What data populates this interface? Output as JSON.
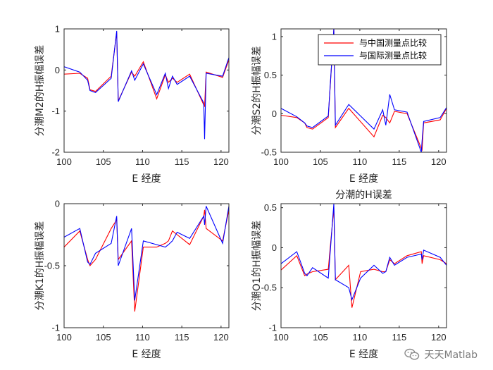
{
  "colors": {
    "china": "#ff0000",
    "intl": "#0000ff",
    "axis": "#262626"
  },
  "legend": {
    "china": "与中国测量点比较",
    "intl": "与国际测量点比较"
  },
  "watermark": {
    "text": "天天Matlab",
    "icon": "wechat-icon"
  },
  "chart_data": [
    {
      "type": "line",
      "id": "m2",
      "title": "",
      "xlabel": "E 经度",
      "ylabel": "分潮M2的H振幅误差",
      "xlim": [
        100,
        121
      ],
      "ylim": [
        -2,
        1
      ],
      "xticks": [
        100,
        105,
        110,
        115,
        120
      ],
      "yticks": [
        -2,
        -1,
        0,
        1
      ],
      "xticklabels": [
        "100",
        "105",
        "110",
        "115",
        "120"
      ],
      "yticklabels": [
        "-2",
        "-1",
        "0",
        "1"
      ],
      "series": [
        {
          "key": "china",
          "color": "#ff0000",
          "x": [
            100,
            102,
            103,
            103.3,
            104,
            106,
            106.7,
            106.9,
            108.6,
            109,
            110.1,
            111.8,
            112.9,
            113.3,
            113.8,
            114.4,
            116,
            117.8,
            117.9,
            118.1,
            120.2,
            121
          ],
          "y": [
            -0.1,
            -0.08,
            -0.2,
            -0.48,
            -0.52,
            -0.15,
            0.92,
            -0.75,
            -0.05,
            -0.15,
            0.2,
            -0.7,
            -0.12,
            -0.3,
            -0.2,
            -0.3,
            -0.1,
            -0.85,
            -0.88,
            -0.05,
            -0.18,
            0.25
          ]
        },
        {
          "key": "intl",
          "color": "#0000ff",
          "x": [
            100,
            102,
            103,
            103.3,
            104,
            106,
            106.7,
            106.9,
            108.6,
            109,
            110.1,
            111.8,
            112.9,
            113.3,
            113.8,
            114.4,
            116,
            117.8,
            117.9,
            118.1,
            120.2,
            121
          ],
          "y": [
            0.08,
            -0.05,
            -0.25,
            -0.5,
            -0.55,
            -0.2,
            0.95,
            -0.77,
            -0.02,
            -0.25,
            0.15,
            -0.6,
            -0.08,
            -0.45,
            -0.15,
            -0.35,
            -0.15,
            -0.8,
            -1.68,
            -0.08,
            -0.15,
            0.3
          ]
        }
      ]
    },
    {
      "type": "line",
      "id": "s2",
      "title": "",
      "xlabel": "E 经度",
      "ylabel": "分潮S2的H振幅误差",
      "xlim": [
        100,
        121
      ],
      "ylim": [
        -0.5,
        1.1
      ],
      "xticks": [
        100,
        105,
        110,
        115,
        120
      ],
      "yticks": [
        -0.5,
        0,
        0.5,
        1
      ],
      "xticklabels": [
        "100",
        "105",
        "110",
        "115",
        "120"
      ],
      "yticklabels": [
        "-0.5",
        "0",
        "0.5",
        "1"
      ],
      "legend": "top-right",
      "series": [
        {
          "key": "china",
          "color": "#ff0000",
          "x": [
            100,
            102,
            103,
            103.3,
            104,
            106,
            106.7,
            106.9,
            108.6,
            111.8,
            112.9,
            113.3,
            113.8,
            114.4,
            116,
            117.8,
            117.9,
            118.1,
            120.2,
            121
          ],
          "y": [
            -0.02,
            -0.05,
            -0.12,
            -0.18,
            -0.2,
            -0.05,
            1.1,
            -0.18,
            0.07,
            -0.3,
            -0.02,
            -0.05,
            -0.12,
            0.03,
            0.0,
            -0.45,
            -0.47,
            -0.12,
            -0.08,
            0.07
          ]
        },
        {
          "key": "intl",
          "color": "#0000ff",
          "x": [
            100,
            102,
            103,
            103.3,
            104,
            106,
            106.7,
            106.9,
            108.6,
            111.8,
            112.9,
            113.3,
            113.8,
            114.4,
            116,
            117.8,
            117.9,
            118.1,
            120.2,
            121
          ],
          "y": [
            0.07,
            -0.04,
            -0.12,
            -0.16,
            -0.18,
            -0.03,
            1.1,
            -0.15,
            0.12,
            -0.2,
            0.05,
            -0.15,
            0.25,
            0.05,
            0.02,
            -0.5,
            -0.35,
            -0.1,
            -0.05,
            0.08
          ]
        }
      ]
    },
    {
      "type": "line",
      "id": "k1",
      "title": "",
      "xlabel": "E 经度",
      "ylabel": "分潮K1的H振幅误差",
      "xlim": [
        100,
        121
      ],
      "ylim": [
        -1,
        0
      ],
      "xticks": [
        100,
        105,
        110,
        115,
        120
      ],
      "yticks": [
        -1,
        -0.5,
        0
      ],
      "xticklabels": [
        "100",
        "105",
        "110",
        "115",
        "120"
      ],
      "yticklabels": [
        "-1",
        "-0.5",
        "0"
      ],
      "series": [
        {
          "key": "china",
          "color": "#ff0000",
          "x": [
            100,
            102,
            103,
            103.3,
            104,
            106,
            106.7,
            106.9,
            108.6,
            109,
            110.1,
            111.8,
            112.9,
            113.3,
            113.8,
            114.4,
            116,
            117.8,
            117.9,
            118.1,
            120.2,
            121
          ],
          "y": [
            -0.35,
            -0.22,
            -0.45,
            -0.5,
            -0.45,
            -0.2,
            -0.13,
            -0.45,
            -0.3,
            -0.87,
            -0.35,
            -0.35,
            -0.32,
            -0.3,
            -0.22,
            -0.25,
            -0.33,
            -0.1,
            -0.05,
            -0.2,
            -0.3,
            -0.05
          ]
        },
        {
          "key": "intl",
          "color": "#0000ff",
          "x": [
            100,
            102,
            103,
            103.3,
            104,
            106,
            106.7,
            106.9,
            108.6,
            109,
            110.1,
            111.8,
            112.9,
            113.3,
            113.8,
            114.4,
            116,
            117.8,
            117.9,
            118.1,
            120.2,
            121
          ],
          "y": [
            -0.27,
            -0.2,
            -0.47,
            -0.49,
            -0.4,
            -0.32,
            -0.1,
            -0.5,
            -0.2,
            -0.78,
            -0.3,
            -0.33,
            -0.35,
            -0.33,
            -0.3,
            -0.23,
            -0.28,
            -0.1,
            -0.17,
            -0.02,
            -0.32,
            -0.02
          ]
        }
      ]
    },
    {
      "type": "line",
      "id": "o1",
      "title": "分潮的H误差",
      "xlabel": "E 经度",
      "ylabel": "分潮O1的H振幅误差",
      "xlim": [
        100,
        121
      ],
      "ylim": [
        -1,
        0.55
      ],
      "xticks": [
        100,
        105,
        110,
        115,
        120
      ],
      "yticks": [
        -1,
        -0.5,
        0,
        0.5
      ],
      "xticklabels": [
        "100",
        "105",
        "110",
        "115",
        "120"
      ],
      "yticklabels": [
        "-1",
        "-0.5",
        "0",
        "0.5"
      ],
      "series": [
        {
          "key": "china",
          "color": "#ff0000",
          "x": [
            100,
            102,
            103,
            103.3,
            104,
            106,
            106.7,
            106.9,
            108.6,
            109,
            110.1,
            111.8,
            112.9,
            113.3,
            113.8,
            114.4,
            116,
            117.8,
            117.9,
            118.1,
            120.2,
            121
          ],
          "y": [
            -0.28,
            -0.1,
            -0.35,
            -0.33,
            -0.3,
            -0.27,
            0.5,
            -0.4,
            -0.22,
            -0.75,
            -0.3,
            -0.27,
            -0.3,
            -0.3,
            -0.15,
            -0.2,
            -0.1,
            -0.05,
            -0.2,
            -0.1,
            -0.15,
            -0.2
          ]
        },
        {
          "key": "intl",
          "color": "#0000ff",
          "x": [
            100,
            102,
            103,
            103.3,
            104,
            106,
            106.7,
            106.9,
            108.6,
            109,
            110.1,
            111.8,
            112.9,
            113.3,
            113.8,
            114.4,
            116,
            117.8,
            117.9,
            118.1,
            120.2,
            121
          ],
          "y": [
            -0.2,
            -0.05,
            -0.32,
            -0.35,
            -0.25,
            -0.38,
            0.55,
            -0.4,
            -0.5,
            -0.65,
            -0.38,
            -0.22,
            -0.32,
            -0.3,
            -0.12,
            -0.22,
            -0.12,
            -0.08,
            -0.15,
            -0.03,
            -0.12,
            -0.22
          ]
        }
      ]
    }
  ]
}
